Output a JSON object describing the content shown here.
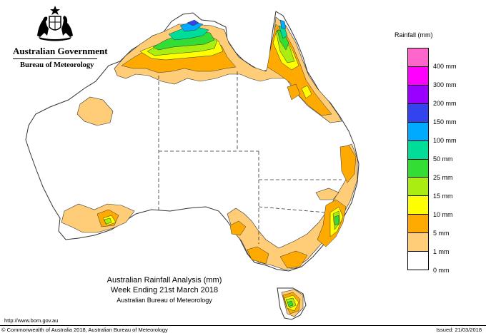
{
  "header": {
    "government": "Australian Government",
    "bureau": "Bureau of Meteorology"
  },
  "legend": {
    "title": "Rainfall (mm)",
    "classes": [
      {
        "label": "",
        "color": "#ff66cc"
      },
      {
        "label": "400 mm",
        "color": "#ff00ff"
      },
      {
        "label": "300 mm",
        "color": "#9900ff"
      },
      {
        "label": "200 mm",
        "color": "#3344ee"
      },
      {
        "label": "150 mm",
        "color": "#00aaff"
      },
      {
        "label": "100 mm",
        "color": "#00dd99"
      },
      {
        "label": "50 mm",
        "color": "#33dd33"
      },
      {
        "label": "25 mm",
        "color": "#aaee11"
      },
      {
        "label": "15 mm",
        "color": "#ffff00"
      },
      {
        "label": "10 mm",
        "color": "#ffaa00"
      },
      {
        "label": "5 mm",
        "color": "#ffcc77"
      },
      {
        "label": "1 mm",
        "color": "#ffffff"
      },
      {
        "label": "0 mm",
        "color": ""
      }
    ]
  },
  "title": {
    "line1": "Australian Rainfall Analysis (mm)",
    "line2": "Week Ending 21st March 2018",
    "line3": "Australian Bureau of Meteorology"
  },
  "footer": {
    "url": "http://www.bom.gov.au",
    "copyright": "© Commonwealth of Australia 2018, Australian Bureau of Meteorology",
    "issued": "Issued: 21/03/2018"
  },
  "colors": {
    "c1": "#ffcc77",
    "c5": "#ffaa00",
    "c10": "#ffff00",
    "c15": "#aaee11",
    "c25": "#33dd33",
    "c50": "#00dd99",
    "c100": "#00aaff",
    "c150": "#3344ee",
    "outline": "#333333"
  }
}
